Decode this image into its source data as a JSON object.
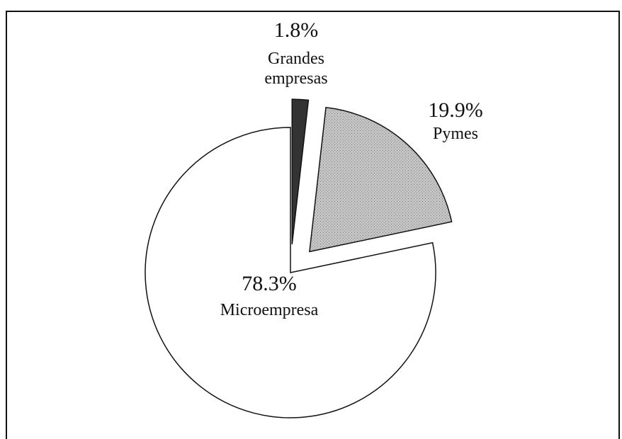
{
  "chart_data": {
    "type": "pie",
    "categories": [
      "Grandes empresas",
      "Pymes",
      "Microempresa"
    ],
    "values": [
      1.8,
      19.9,
      78.3
    ],
    "value_labels": [
      "1.8%",
      "19.9%",
      "78.3%"
    ],
    "colors": [
      "#333333",
      "#bdbdbd",
      "#ffffff"
    ]
  }
}
